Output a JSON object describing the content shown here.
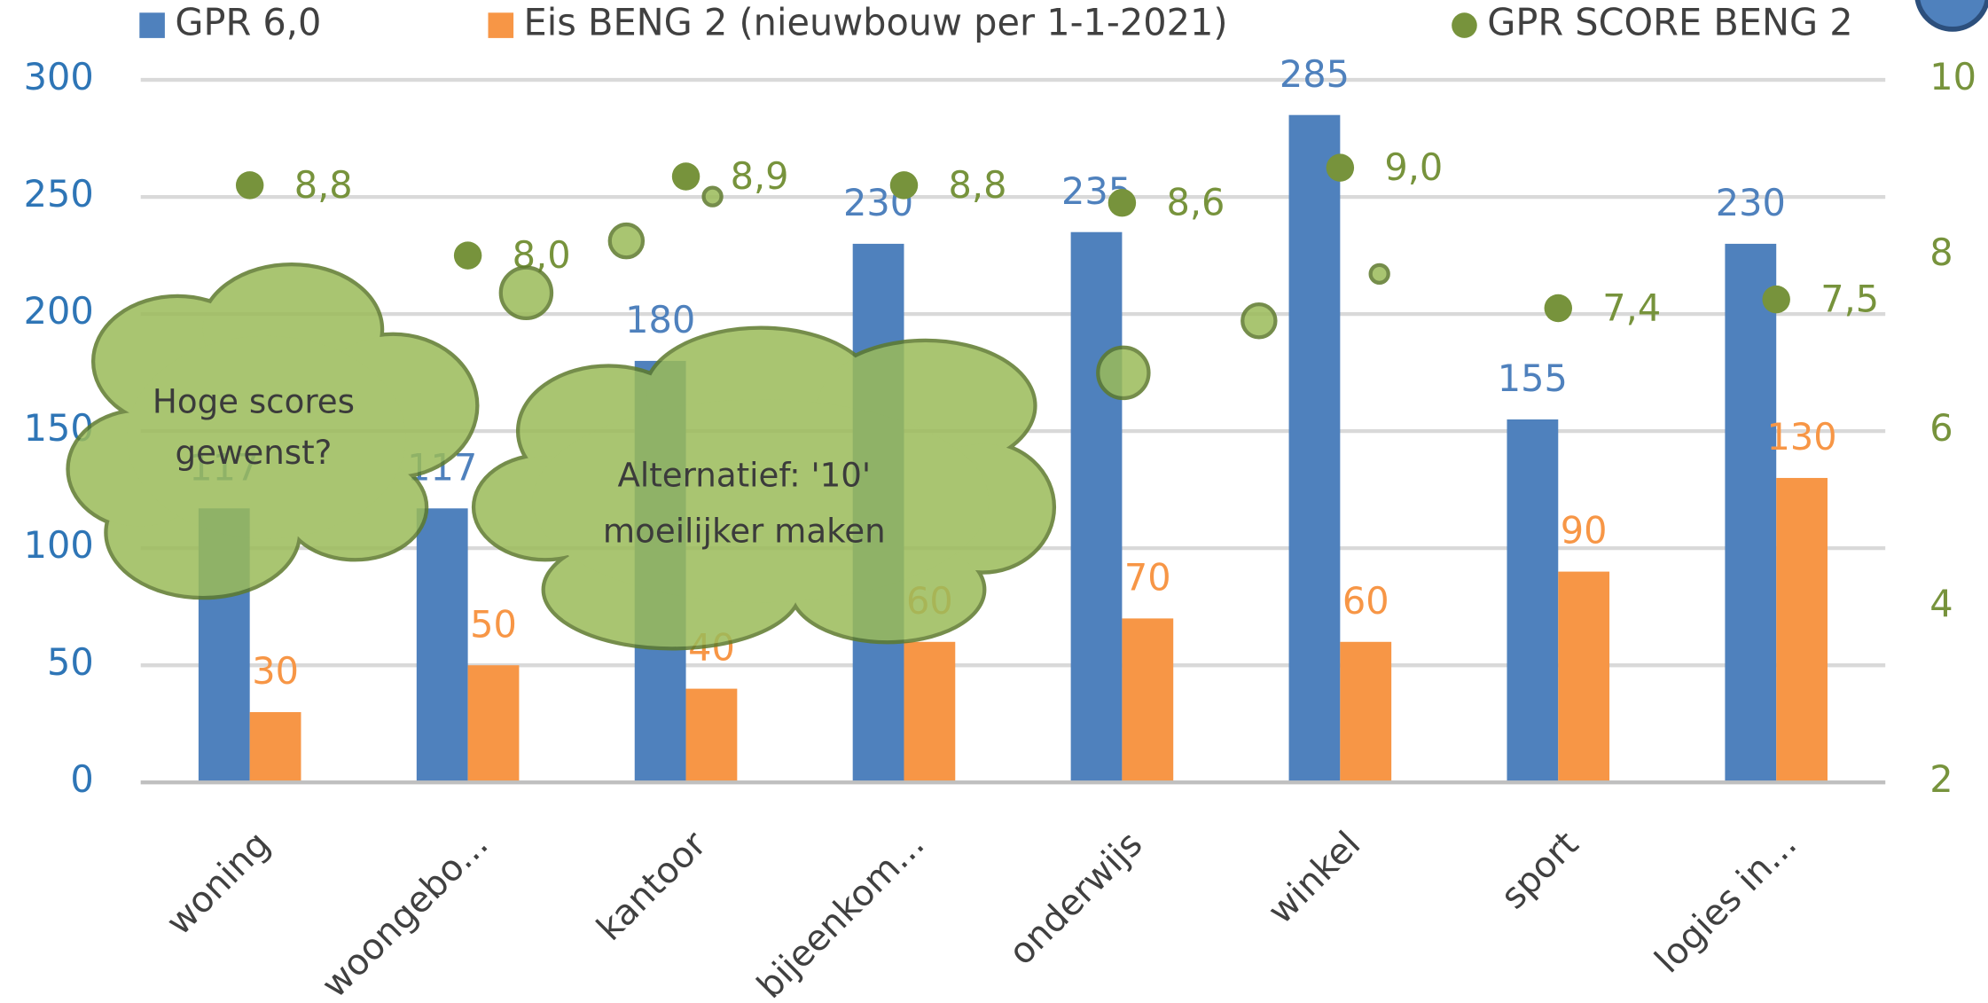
{
  "chart_data": {
    "type": "bar",
    "categories": [
      "woning",
      "woongebo...",
      "kantoor",
      "bijeenkom...",
      "onderwijs",
      "winkel",
      "sport",
      "logies in..."
    ],
    "series": [
      {
        "name": "GPR 6,0",
        "color": "#4f81bd",
        "values": [
          117,
          117,
          180,
          230,
          235,
          285,
          155,
          230
        ]
      },
      {
        "name": "Eis BENG 2 (nieuwbouw per 1-1-2021)",
        "color": "#f79646",
        "values": [
          30,
          50,
          40,
          60,
          70,
          60,
          90,
          130
        ]
      },
      {
        "name": "GPR SCORE BENG 2",
        "color": "#77933c",
        "type": "scatter",
        "axis": "y2",
        "values": [
          8.8,
          8.0,
          8.9,
          8.8,
          8.6,
          9.0,
          7.4,
          7.5
        ],
        "value_labels": [
          "8,8",
          "8,0",
          "8,9",
          "8,8",
          "8,6",
          "9,0",
          "7,4",
          "7,5"
        ]
      }
    ],
    "ylim": [
      0,
      300
    ],
    "yticks": [
      0,
      50,
      100,
      150,
      200,
      250,
      300
    ],
    "y2lim": [
      2,
      10
    ],
    "y2ticks": [
      2,
      4,
      6,
      8,
      10
    ],
    "grid": true,
    "legend": "top",
    "annotations": [
      "Hoge scores gewenst?",
      "Alternatief: '10' moeilijker maken"
    ]
  }
}
